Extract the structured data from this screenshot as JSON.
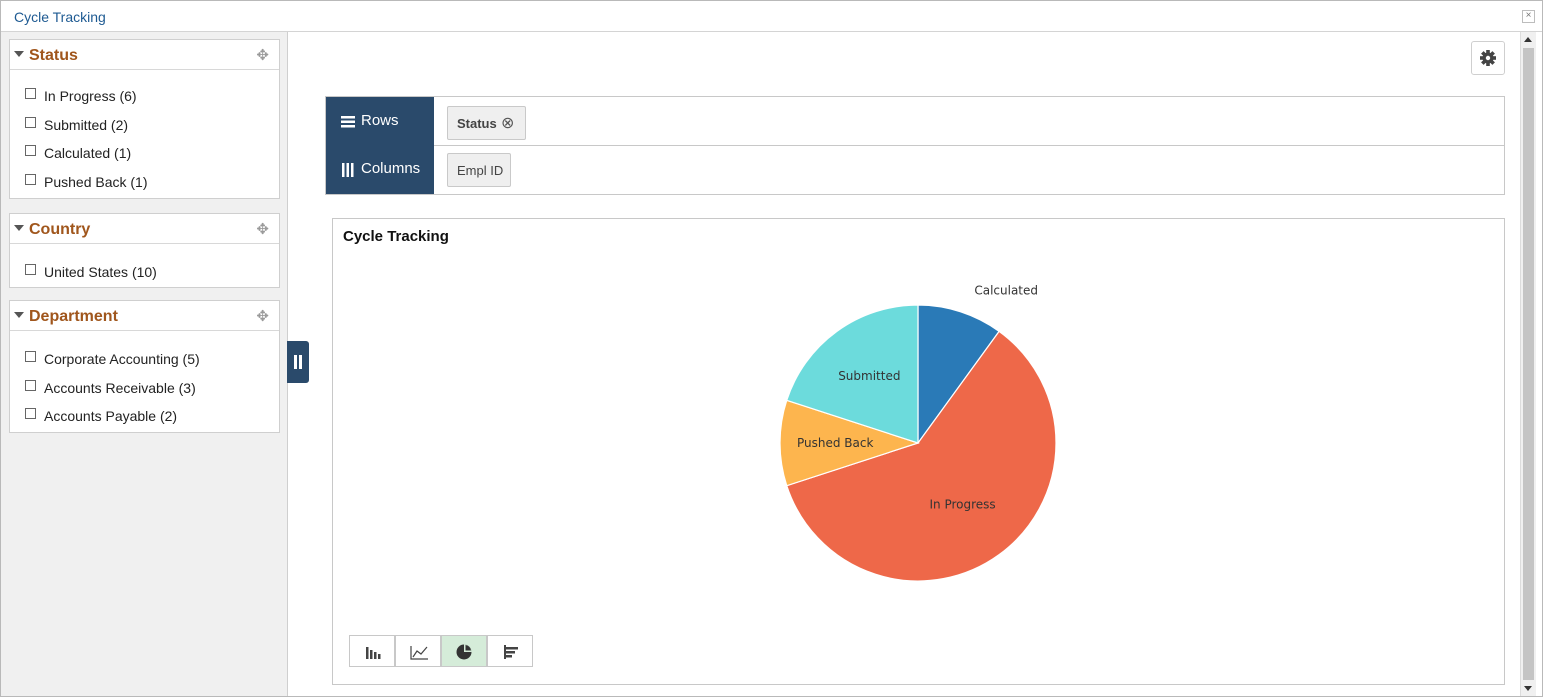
{
  "window": {
    "title": "Cycle Tracking",
    "close_glyph": "×"
  },
  "facets": [
    {
      "title": "Status",
      "items": [
        "In Progress (6)",
        "Submitted (2)",
        "Calculated (1)",
        "Pushed Back (1)"
      ]
    },
    {
      "title": "Country",
      "items": [
        "United States (10)"
      ]
    },
    {
      "title": "Department",
      "items": [
        "Corporate Accounting (5)",
        "Accounts Receivable (3)",
        "Accounts Payable (2)"
      ]
    }
  ],
  "move_glyph": "✥",
  "pivot": {
    "rows_label": "Rows",
    "columns_label": "Columns",
    "row_chip": "Status",
    "column_chip": "Empl ID",
    "remove_glyph": "⊗"
  },
  "chart_title": "Cycle Tracking",
  "chart_data": {
    "type": "pie",
    "title": "Cycle Tracking",
    "categories": [
      "Calculated",
      "In Progress",
      "Pushed Back",
      "Submitted"
    ],
    "values": [
      1,
      6,
      1,
      2
    ],
    "colors": [
      "#2a7ab7",
      "#ee6849",
      "#fdb54e",
      "#6cdbdc"
    ],
    "legend": "none"
  },
  "chart_types": [
    "bar-chart-icon",
    "line-chart-icon",
    "pie-chart-icon",
    "horizontal-bar-chart-icon"
  ],
  "active_chart_type": "pie-chart-icon"
}
